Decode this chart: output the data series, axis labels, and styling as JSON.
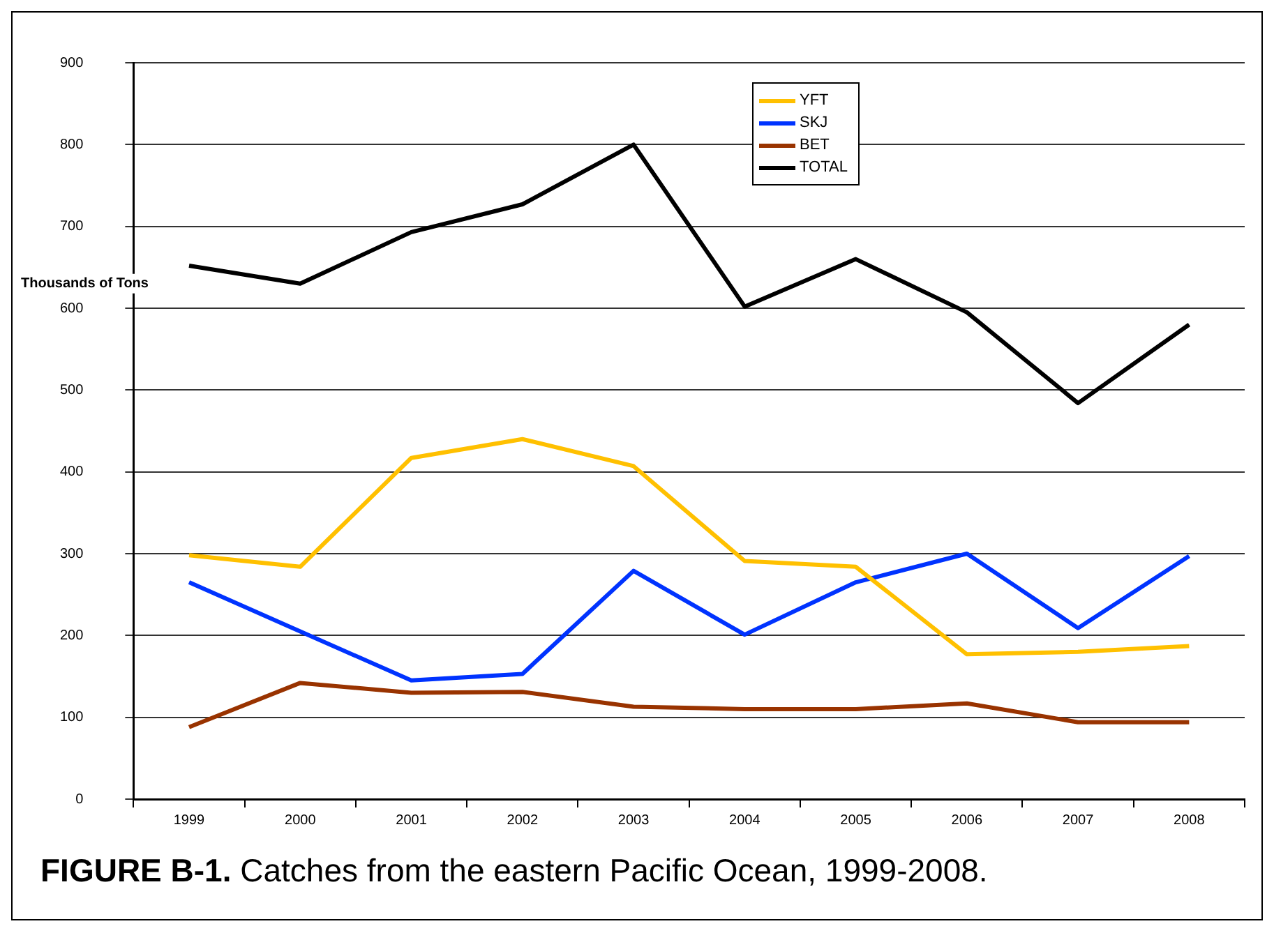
{
  "chart_data": {
    "type": "line",
    "title": "FIGURE B-1.  Catches from the eastern Pacific Ocean, 1999-2008.",
    "ylabel": "Thousands of Tons",
    "categories": [
      "1999",
      "2000",
      "2001",
      "2002",
      "2003",
      "2004",
      "2005",
      "2006",
      "2007",
      "2008"
    ],
    "series": [
      {
        "name": "YFT",
        "color": "#ffc000",
        "values": [
          298,
          284,
          417,
          440,
          407,
          291,
          284,
          177,
          180,
          187
        ]
      },
      {
        "name": "SKJ",
        "color": "#0033ff",
        "values": [
          265,
          205,
          145,
          153,
          279,
          201,
          265,
          300,
          209,
          297
        ]
      },
      {
        "name": "BET",
        "color": "#993300",
        "values": [
          88,
          142,
          130,
          131,
          113,
          110,
          110,
          117,
          94,
          94
        ]
      },
      {
        "name": "TOTAL",
        "color": "#000000",
        "values": [
          652,
          630,
          693,
          727,
          800,
          602,
          660,
          595,
          484,
          580
        ]
      }
    ],
    "ylim": [
      0,
      900
    ],
    "yticks": [
      0,
      100,
      200,
      300,
      400,
      500,
      600,
      700,
      800,
      900
    ],
    "grid": "y",
    "legend": "top",
    "marker": "none",
    "line_style": "solid"
  }
}
